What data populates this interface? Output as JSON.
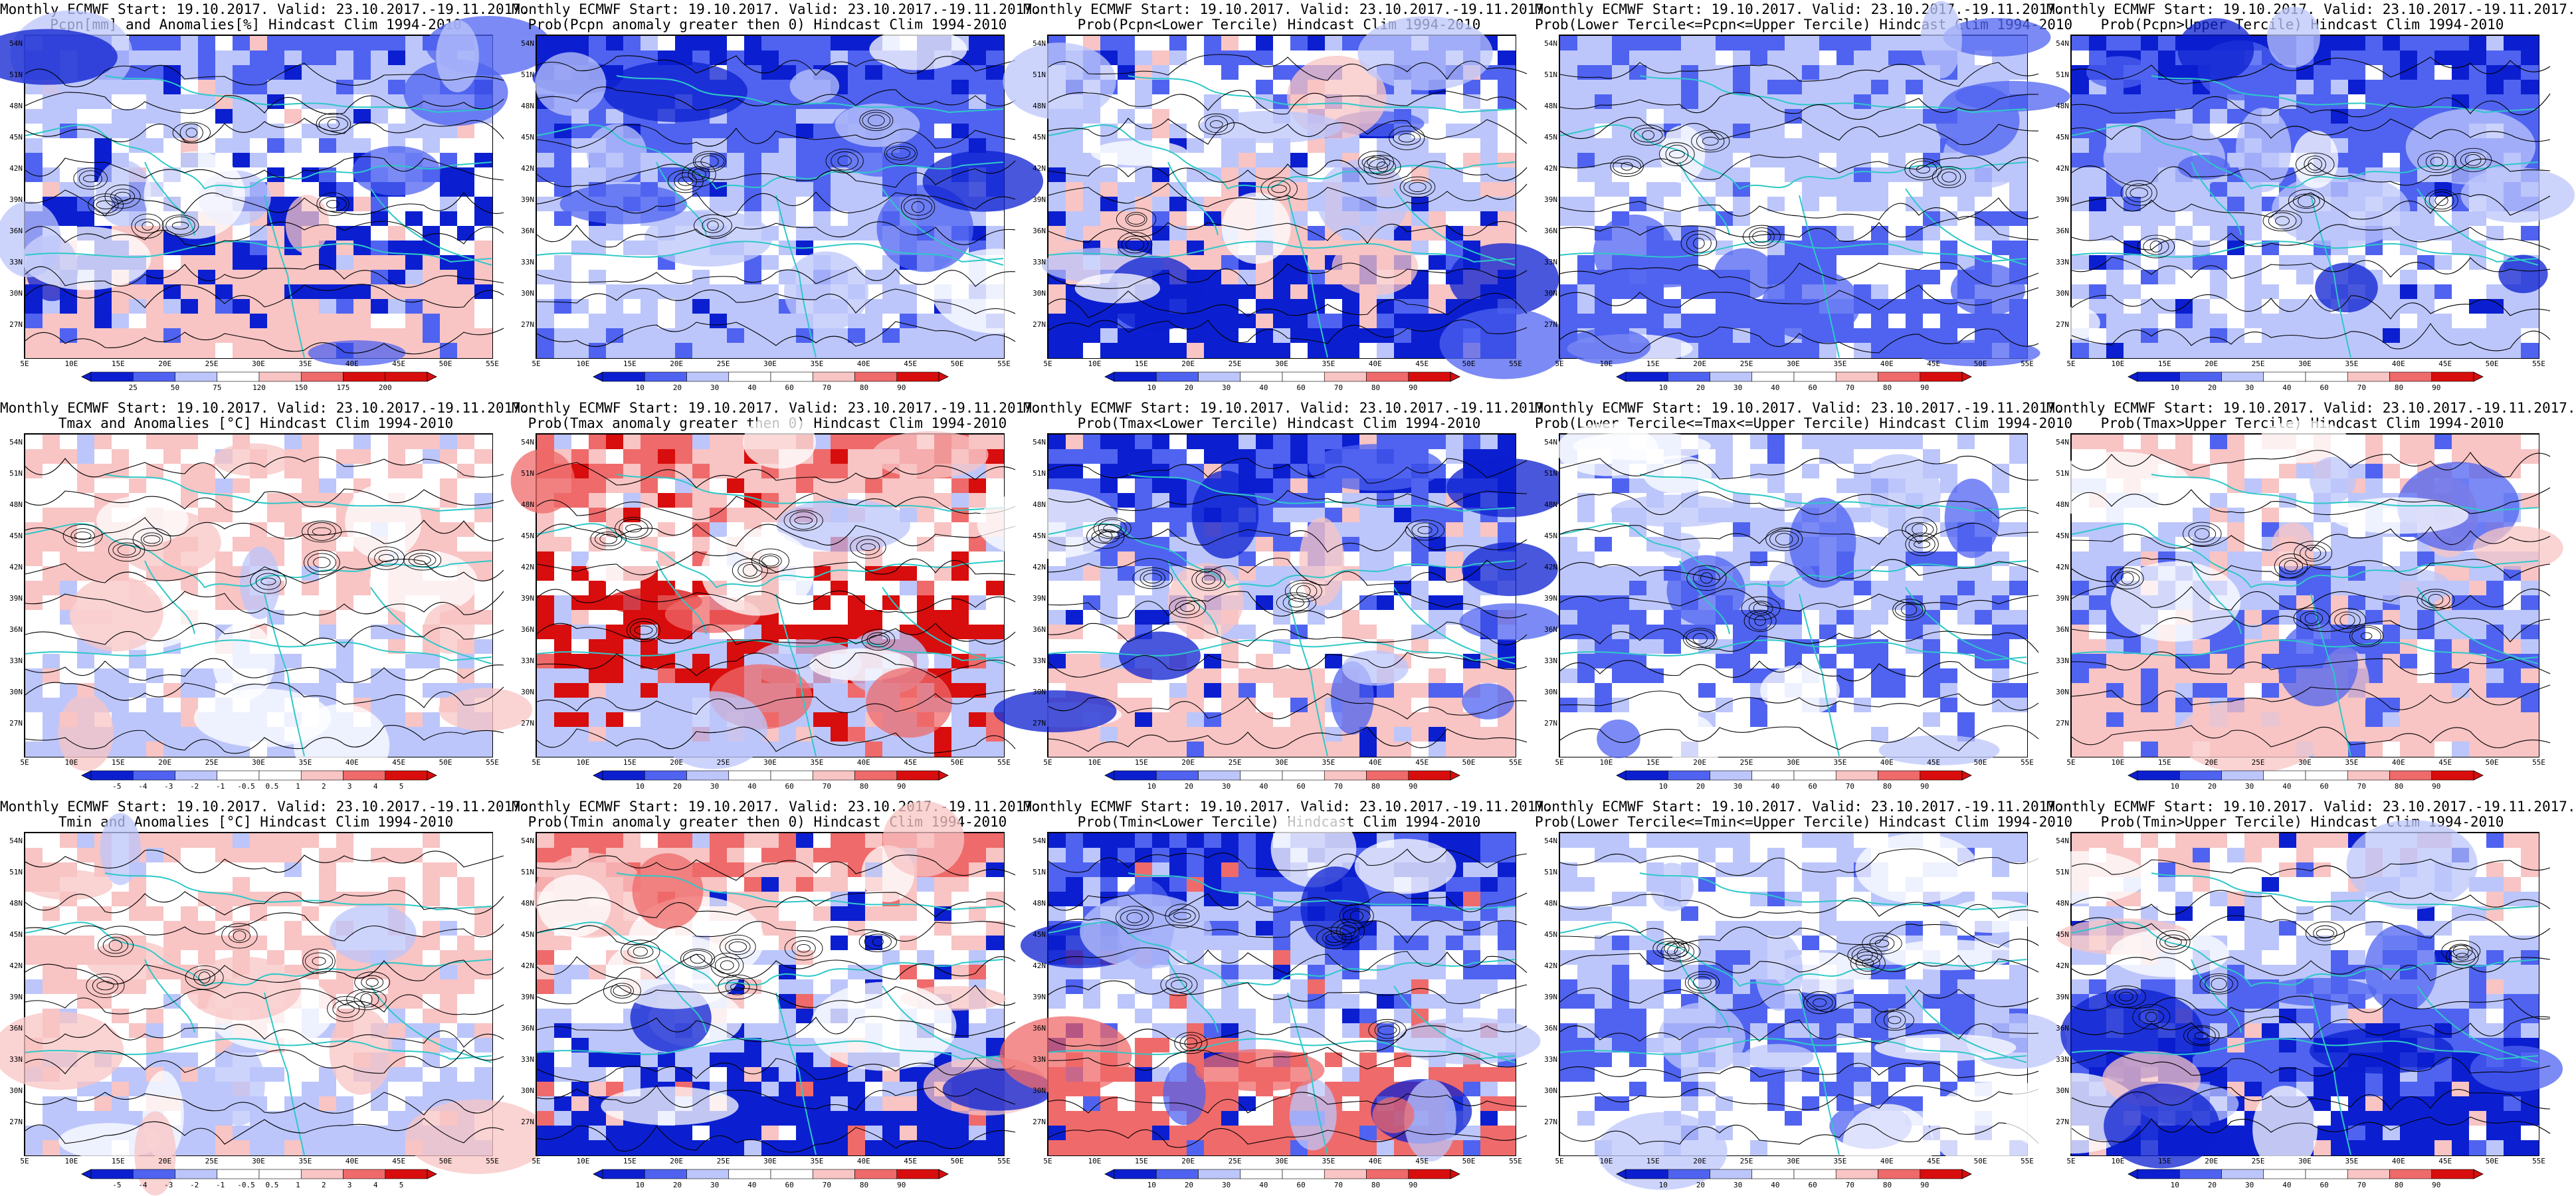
{
  "map_axes": {
    "lat_labels": [
      "54N",
      "51N",
      "48N",
      "45N",
      "42N",
      "39N",
      "36N",
      "33N",
      "30N",
      "27N"
    ],
    "lon_labels": [
      "5E",
      "10E",
      "15E",
      "20E",
      "25E",
      "30E",
      "35E",
      "40E",
      "45E",
      "50E",
      "55E"
    ]
  },
  "colorbars": {
    "pcpn_anom": [
      "25",
      "50",
      "75",
      "120",
      "150",
      "175",
      "200"
    ],
    "prob": [
      "10",
      "20",
      "30",
      "40",
      "60",
      "70",
      "80",
      "90"
    ],
    "temp_anom": [
      "-5",
      "-4",
      "-3",
      "-2",
      "-1",
      "-0.5",
      "0.5",
      "1",
      "2",
      "3",
      "4",
      "5"
    ]
  },
  "palettes": {
    "dark_blue": "#0b1fd0",
    "mid_blue": "#4f63f0",
    "light_blue": "#bcc6fb",
    "white": "#ffffff",
    "light_red": "#f8c4c4",
    "mid_red": "#ef6a6a",
    "dark_red": "#d80d0d",
    "coast": "#2fc8c8",
    "contour": "#000000"
  },
  "panels": [
    {
      "title1": "Monthly ECMWF Start: 19.10.2017. Valid: 23.10.2017.-19.11.2017.",
      "title2": "Pcpn[mm] and Anomalies[%] Hindcast Clim 1994-2010",
      "bar": "pcpn_anom",
      "scheme": "pcpn_anom"
    },
    {
      "title1": "Monthly ECMWF Start: 19.10.2017. Valid: 23.10.2017.-19.11.2017.",
      "title2": "Prob(Pcpn anomaly greater then 0) Hindcast Clim 1994-2010",
      "bar": "prob",
      "scheme": "blue_heavy"
    },
    {
      "title1": "Monthly ECMWF Start: 19.10.2017. Valid: 23.10.2017.-19.11.2017.",
      "title2": "Prob(Pcpn<Lower Tercile) Hindcast Clim 1994-2010",
      "bar": "prob",
      "scheme": "mixed_red_sw"
    },
    {
      "title1": "Monthly ECMWF Start: 19.10.2017. Valid: 23.10.2017.-19.11.2017.",
      "title2": "Prob(Lower Tercile<=Pcpn<=Upper Tercile) Hindcast Clim 1994-2010",
      "bar": "prob",
      "scheme": "blue_mid"
    },
    {
      "title1": "Monthly ECMWF Start: 19.10.2017. Valid: 23.10.2017.-19.11.2017.",
      "title2": "Prob(Pcpn>Upper Tercile) Hindcast Clim 1994-2010",
      "bar": "prob",
      "scheme": "blue_heavy"
    },
    {
      "title1": "Monthly ECMWF Start: 19.10.2017. Valid: 23.10.2017.-19.11.2017.",
      "title2": "Tmax and Anomalies [°C] Hindcast Clim 1994-2010",
      "bar": "temp_anom",
      "scheme": "warm_light"
    },
    {
      "title1": "Monthly ECMWF Start: 19.10.2017. Valid: 23.10.2017.-19.11.2017.",
      "title2": "Prob(Tmax anomaly greater then 0) Hindcast Clim 1994-2010",
      "bar": "prob",
      "scheme": "red_north_east"
    },
    {
      "title1": "Monthly ECMWF Start: 19.10.2017. Valid: 23.10.2017.-19.11.2017.",
      "title2": "Prob(Tmax<Lower Tercile) Hindcast Clim 1994-2010",
      "bar": "prob",
      "scheme": "blue_red_south"
    },
    {
      "title1": "Monthly ECMWF Start: 19.10.2017. Valid: 23.10.2017.-19.11.2017.",
      "title2": "Prob(Lower Tercile<=Tmax<=Upper Tercile) Hindcast Clim 1994-2010",
      "bar": "prob",
      "scheme": "blue_light"
    },
    {
      "title1": "Monthly ECMWF Start: 19.10.2017. Valid: 23.10.2017.-19.11.2017.",
      "title2": "Prob(Tmax>Upper Tercile) Hindcast Clim 1994-2010",
      "bar": "prob",
      "scheme": "red_nw_blue_s"
    },
    {
      "title1": "Monthly ECMWF Start: 19.10.2017. Valid: 23.10.2017.-19.11.2017.",
      "title2": "Tmin and Anomalies [°C] Hindcast Clim 1994-2010",
      "bar": "temp_anom",
      "scheme": "warm_light"
    },
    {
      "title1": "Monthly ECMWF Start: 19.10.2017. Valid: 23.10.2017.-19.11.2017.",
      "title2": "Prob(Tmin anomaly greater then 0) Hindcast Clim 1994-2010",
      "bar": "prob",
      "scheme": "red_north_blue_s"
    },
    {
      "title1": "Monthly ECMWF Start: 19.10.2017. Valid: 23.10.2017.-19.11.2017.",
      "title2": "Prob(Tmin<Lower Tercile) Hindcast Clim 1994-2010",
      "bar": "prob",
      "scheme": "blue_red_sw"
    },
    {
      "title1": "Monthly ECMWF Start: 19.10.2017. Valid: 23.10.2017.-19.11.2017.",
      "title2": "Prob(Lower Tercile<=Tmin<=Upper Tercile) Hindcast Clim 1994-2010",
      "bar": "prob",
      "scheme": "blue_light"
    },
    {
      "title1": "Monthly ECMWF Start: 19.10.2017. Valid: 23.10.2017.-19.11.2017.",
      "title2": "Prob(Tmin>Upper Tercile) Hindcast Clim 1994-2010",
      "bar": "prob",
      "scheme": "red_n_blue_s"
    }
  ]
}
